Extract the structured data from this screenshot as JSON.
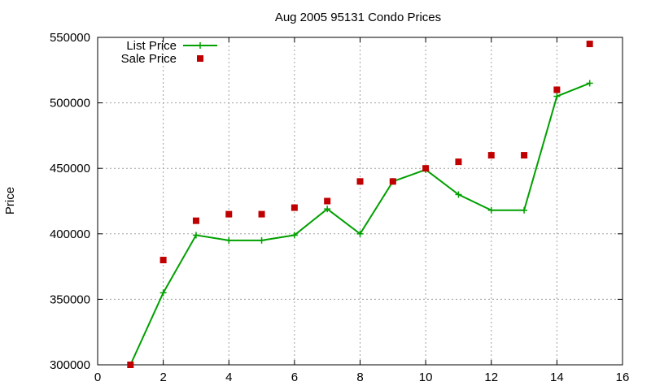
{
  "chart_data": {
    "type": "line",
    "title": "Aug 2005 95131 Condo Prices",
    "xlabel": "",
    "ylabel": "Price",
    "xlim": [
      0,
      16
    ],
    "ylim": [
      300000,
      550000
    ],
    "xticks": [
      0,
      2,
      4,
      6,
      8,
      10,
      12,
      14,
      16
    ],
    "yticks": [
      300000,
      350000,
      400000,
      450000,
      500000,
      550000
    ],
    "grid": true,
    "legend_position": "top-left",
    "series": [
      {
        "name": "List Price",
        "style": "line-plus",
        "color": "#00a000",
        "x": [
          1,
          2,
          3,
          4,
          5,
          6,
          7,
          8,
          9,
          10,
          11,
          12,
          13,
          14,
          15
        ],
        "y": [
          300000,
          355000,
          399000,
          395000,
          395000,
          399000,
          419000,
          400000,
          440000,
          449000,
          430000,
          418000,
          418000,
          505000,
          515000
        ]
      },
      {
        "name": "Sale Price",
        "style": "square-markers",
        "color": "#c00000",
        "x": [
          1,
          2,
          3,
          4,
          5,
          6,
          7,
          8,
          9,
          10,
          11,
          12,
          13,
          14,
          15
        ],
        "y": [
          300000,
          380000,
          410000,
          415000,
          415000,
          420000,
          425000,
          440000,
          440000,
          450000,
          455000,
          460000,
          460000,
          510000,
          545000
        ]
      }
    ]
  }
}
